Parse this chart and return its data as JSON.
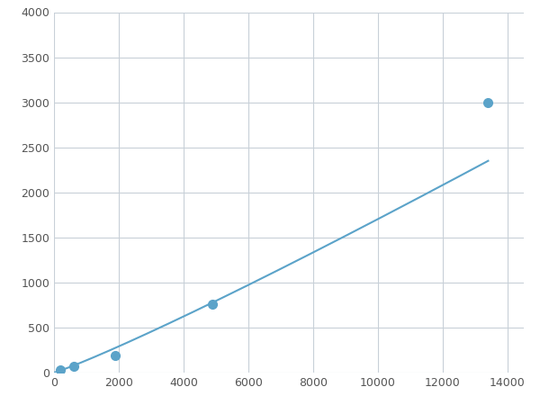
{
  "x_points": [
    200,
    600,
    1900,
    4900,
    13400
  ],
  "y_points": [
    30,
    70,
    190,
    760,
    3000
  ],
  "line_color": "#5BA3C9",
  "marker_color": "#5BA3C9",
  "marker_size": 7,
  "line_width": 1.5,
  "xlim": [
    0,
    14500
  ],
  "ylim": [
    0,
    4000
  ],
  "xticks": [
    0,
    2000,
    4000,
    6000,
    8000,
    10000,
    12000,
    14000
  ],
  "yticks": [
    0,
    500,
    1000,
    1500,
    2000,
    2500,
    3000,
    3500,
    4000
  ],
  "grid_color": "#C8D0D8",
  "grid_linewidth": 0.8,
  "background_color": "#FFFFFF",
  "fig_background": "#FFFFFF",
  "tick_label_color": "#555555",
  "tick_label_size": 9
}
